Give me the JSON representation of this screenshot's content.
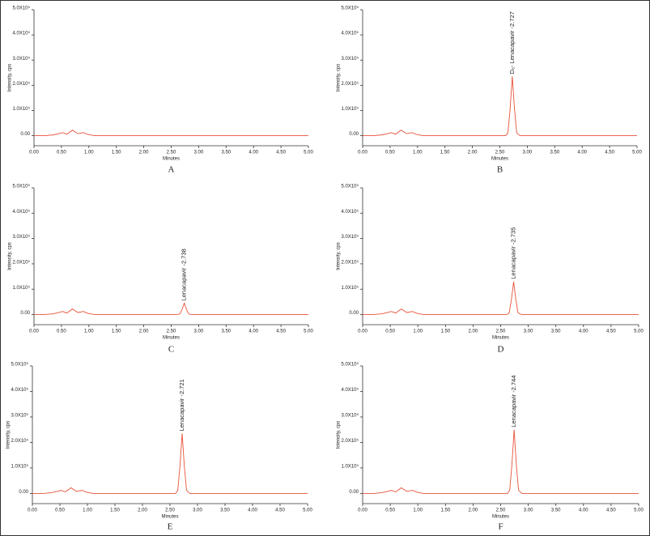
{
  "chart_data": [
    {
      "type": "line",
      "panel": "A",
      "xlabel": "Minutes",
      "ylabel": "Intensity, cps",
      "color": "#e8523a",
      "x": [
        0,
        0.2,
        0.35,
        0.45,
        0.52,
        0.6,
        0.7,
        0.8,
        0.9,
        0.98,
        1.1,
        5.0
      ],
      "values": [
        0,
        0,
        3000,
        8000,
        12000,
        6000,
        22000,
        8000,
        12000,
        5000,
        0,
        0
      ],
      "xlim": [
        0,
        5
      ],
      "ylim": [
        -40000,
        500000
      ],
      "xticks": [
        {
          "value": 0,
          "label": "0.00"
        },
        {
          "value": 0.5,
          "label": "0.50"
        },
        {
          "value": 1,
          "label": "1.00"
        },
        {
          "value": 1.5,
          "label": "1.50"
        },
        {
          "value": 2,
          "label": "2.00"
        },
        {
          "value": 2.5,
          "label": "2.50"
        },
        {
          "value": 3,
          "label": "3.00"
        },
        {
          "value": 3.5,
          "label": "3.50"
        },
        {
          "value": 4,
          "label": "4.00"
        },
        {
          "value": 4.5,
          "label": "4.50"
        },
        {
          "value": 5,
          "label": "5.00"
        }
      ],
      "yticks": [
        {
          "value": 0,
          "label": "0.00"
        },
        {
          "value": 100000,
          "label": "1.0X10⁵"
        },
        {
          "value": 200000,
          "label": "2.0X10⁵"
        },
        {
          "value": 300000,
          "label": "3.0X10⁵"
        },
        {
          "value": 400000,
          "label": "4.0X10⁵"
        },
        {
          "value": 500000,
          "label": "5.0X10⁵"
        }
      ]
    },
    {
      "type": "line",
      "panel": "B",
      "xlabel": "Minutes",
      "ylabel": "Intensity, cps",
      "color": "#e8523a",
      "annotation": "D₆- Lenacapavir -2.727",
      "x": [
        0,
        0.2,
        0.35,
        0.45,
        0.52,
        0.6,
        0.7,
        0.8,
        0.9,
        0.98,
        1.1,
        2.607,
        2.647,
        2.687,
        2.727,
        2.767,
        2.807,
        2.867,
        5.0
      ],
      "values": [
        0,
        0,
        3000,
        8000,
        12000,
        6000,
        22000,
        8000,
        12000,
        5000,
        0,
        0,
        11750,
        105750,
        235000,
        105750,
        11750,
        0,
        0
      ],
      "xlim": [
        0,
        5
      ],
      "ylim": [
        -40000,
        500000
      ],
      "xticks": [
        {
          "value": 0,
          "label": "0.00"
        },
        {
          "value": 0.5,
          "label": "0.50"
        },
        {
          "value": 1,
          "label": "1.00"
        },
        {
          "value": 1.5,
          "label": "1.50"
        },
        {
          "value": 2,
          "label": "2.00"
        },
        {
          "value": 2.5,
          "label": "2.50"
        },
        {
          "value": 3,
          "label": "3.00"
        },
        {
          "value": 3.5,
          "label": "3.50"
        },
        {
          "value": 4,
          "label": "4.00"
        },
        {
          "value": 4.5,
          "label": "4.50"
        },
        {
          "value": 5,
          "label": "5.00"
        }
      ],
      "yticks": [
        {
          "value": 0,
          "label": "0.00"
        },
        {
          "value": 100000,
          "label": "1.0X10⁵"
        },
        {
          "value": 200000,
          "label": "2.0X10⁵"
        },
        {
          "value": 300000,
          "label": "3.0X10⁵"
        },
        {
          "value": 400000,
          "label": "4.0X10⁵"
        },
        {
          "value": 500000,
          "label": "5.0X10⁵"
        }
      ]
    },
    {
      "type": "line",
      "panel": "C",
      "xlabel": "Minutes",
      "ylabel": "Intensity, cps",
      "color": "#e8523a",
      "annotation": "Lenacapavir -2.738",
      "x": [
        0,
        0.2,
        0.35,
        0.45,
        0.52,
        0.6,
        0.7,
        0.8,
        0.9,
        0.98,
        1.1,
        2.618,
        2.658,
        2.698,
        2.738,
        2.778,
        2.818,
        2.878,
        5.0
      ],
      "values": [
        0,
        0,
        3000,
        8000,
        12000,
        6000,
        22000,
        8000,
        12000,
        5000,
        0,
        0,
        2250,
        20250,
        45000,
        20250,
        2250,
        0,
        0
      ],
      "xlim": [
        0,
        5
      ],
      "ylim": [
        -40000,
        500000
      ],
      "xticks": [
        {
          "value": 0,
          "label": "0.00"
        },
        {
          "value": 0.5,
          "label": "0.50"
        },
        {
          "value": 1,
          "label": "1.00"
        },
        {
          "value": 1.5,
          "label": "1.50"
        },
        {
          "value": 2,
          "label": "2.00"
        },
        {
          "value": 2.5,
          "label": "2.50"
        },
        {
          "value": 3,
          "label": "3.00"
        },
        {
          "value": 3.5,
          "label": "3.50"
        },
        {
          "value": 4,
          "label": "4.00"
        },
        {
          "value": 4.5,
          "label": "4.50"
        },
        {
          "value": 5,
          "label": "5.00"
        }
      ],
      "yticks": [
        {
          "value": 0,
          "label": "0.00"
        },
        {
          "value": 100000,
          "label": "1.0X10⁵"
        },
        {
          "value": 200000,
          "label": "2.0X10⁵"
        },
        {
          "value": 300000,
          "label": "3.0X10⁵"
        },
        {
          "value": 400000,
          "label": "4.0X10⁵"
        },
        {
          "value": 500000,
          "label": "5.0X10⁵"
        }
      ]
    },
    {
      "type": "line",
      "panel": "D",
      "xlabel": "Minutes",
      "ylabel": "Intensity, cps",
      "color": "#e8523a",
      "annotation": "Lenacapavir -2.735",
      "x": [
        0,
        0.2,
        0.35,
        0.45,
        0.52,
        0.6,
        0.7,
        0.8,
        0.9,
        0.98,
        1.1,
        2.615,
        2.655,
        2.695,
        2.735,
        2.775,
        2.815,
        2.875,
        5.0
      ],
      "values": [
        0,
        0,
        3000,
        8000,
        12000,
        6000,
        22000,
        8000,
        12000,
        5000,
        0,
        0,
        6500,
        58500,
        130000,
        58500,
        6500,
        0,
        0
      ],
      "xlim": [
        0,
        5
      ],
      "ylim": [
        -40000,
        500000
      ],
      "xticks": [
        {
          "value": 0,
          "label": "0.00"
        },
        {
          "value": 0.5,
          "label": "0.50"
        },
        {
          "value": 1,
          "label": "1.00"
        },
        {
          "value": 1.5,
          "label": "1.50"
        },
        {
          "value": 2,
          "label": "2.00"
        },
        {
          "value": 2.5,
          "label": "2.50"
        },
        {
          "value": 3,
          "label": "3.00"
        },
        {
          "value": 3.5,
          "label": "3.50"
        },
        {
          "value": 4,
          "label": "4.00"
        },
        {
          "value": 4.5,
          "label": "4.50"
        },
        {
          "value": 5,
          "label": "5.00"
        }
      ],
      "yticks": [
        {
          "value": 0,
          "label": "0.00"
        },
        {
          "value": 100000,
          "label": "1.0X10⁵"
        },
        {
          "value": 200000,
          "label": "2.0X10⁵"
        },
        {
          "value": 300000,
          "label": "3.0X10⁵"
        },
        {
          "value": 400000,
          "label": "4.0X10⁵"
        },
        {
          "value": 500000,
          "label": "5.0X10⁵"
        }
      ]
    },
    {
      "type": "line",
      "panel": "E",
      "xlabel": "Minutes",
      "ylabel": "Intensity, cps",
      "color": "#e8523a",
      "annotation": "Lenacapavir -2.721",
      "x": [
        0,
        0.2,
        0.35,
        0.45,
        0.52,
        0.6,
        0.7,
        0.8,
        0.9,
        0.98,
        1.1,
        2.601,
        2.641,
        2.681,
        2.721,
        2.761,
        2.801,
        2.861,
        5.0
      ],
      "values": [
        0,
        0,
        3000,
        8000,
        12000,
        6000,
        22000,
        8000,
        12000,
        5000,
        0,
        0,
        11750,
        105750,
        235000,
        105750,
        11750,
        0,
        0
      ],
      "xlim": [
        0,
        5
      ],
      "ylim": [
        -40000,
        500000
      ],
      "xticks": [
        {
          "value": 0,
          "label": "0.00"
        },
        {
          "value": 0.5,
          "label": "0.50"
        },
        {
          "value": 1,
          "label": "1.00"
        },
        {
          "value": 1.5,
          "label": "1.50"
        },
        {
          "value": 2,
          "label": "2.00"
        },
        {
          "value": 2.5,
          "label": "2.50"
        },
        {
          "value": 3,
          "label": "3.00"
        },
        {
          "value": 3.5,
          "label": "3.50"
        },
        {
          "value": 4,
          "label": "4.00"
        },
        {
          "value": 4.5,
          "label": "4.50"
        },
        {
          "value": 5,
          "label": "5.00"
        }
      ],
      "yticks": [
        {
          "value": 0,
          "label": "0.00"
        },
        {
          "value": 100000,
          "label": "1.0X10⁵"
        },
        {
          "value": 200000,
          "label": "2.0X10⁵"
        },
        {
          "value": 300000,
          "label": "3.0X10⁵"
        },
        {
          "value": 400000,
          "label": "4.0X10⁵"
        },
        {
          "value": 500000,
          "label": "5.0X10⁵"
        }
      ]
    },
    {
      "type": "line",
      "panel": "F",
      "xlabel": "Minutes",
      "ylabel": "Intensity, cps",
      "color": "#e8523a",
      "annotation": "Lenacapavir -2.744",
      "x": [
        0,
        0.2,
        0.35,
        0.45,
        0.52,
        0.6,
        0.7,
        0.8,
        0.9,
        0.98,
        1.1,
        2.624,
        2.664,
        2.704,
        2.744,
        2.784,
        2.824,
        2.884,
        5.0
      ],
      "values": [
        0,
        0,
        3000,
        8000,
        12000,
        6000,
        22000,
        8000,
        12000,
        5000,
        0,
        0,
        12500,
        112500,
        250000,
        112500,
        12500,
        0,
        0
      ],
      "xlim": [
        0,
        5
      ],
      "ylim": [
        -40000,
        500000
      ],
      "xticks": [
        {
          "value": 0,
          "label": "0.00"
        },
        {
          "value": 0.5,
          "label": "0.50"
        },
        {
          "value": 1,
          "label": "1.00"
        },
        {
          "value": 1.5,
          "label": "1.50"
        },
        {
          "value": 2,
          "label": "2.00"
        },
        {
          "value": 2.5,
          "label": "2.50"
        },
        {
          "value": 3,
          "label": "3.00"
        },
        {
          "value": 3.5,
          "label": "3.50"
        },
        {
          "value": 4,
          "label": "4.00"
        },
        {
          "value": 4.5,
          "label": "4.50"
        },
        {
          "value": 5,
          "label": "5.00"
        }
      ],
      "yticks": [
        {
          "value": 0,
          "label": "0.00"
        },
        {
          "value": 100000,
          "label": "1.0X10⁵"
        },
        {
          "value": 200000,
          "label": "2.0X10⁵"
        },
        {
          "value": 300000,
          "label": "3.0X10⁵"
        },
        {
          "value": 400000,
          "label": "4.0X10⁵"
        },
        {
          "value": 500000,
          "label": "5.0X10⁵"
        }
      ]
    }
  ]
}
